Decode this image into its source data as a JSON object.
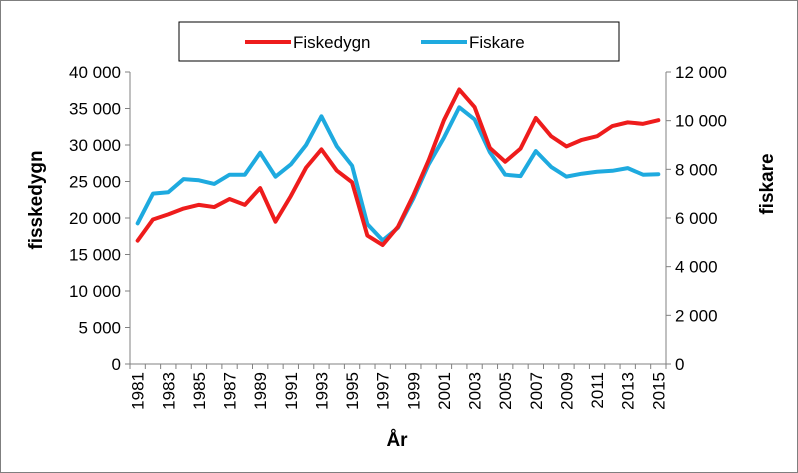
{
  "chart_data": {
    "type": "line",
    "x": [
      1981,
      1982,
      1983,
      1984,
      1985,
      1986,
      1987,
      1988,
      1989,
      1990,
      1991,
      1992,
      1993,
      1994,
      1995,
      1996,
      1997,
      1998,
      1999,
      2000,
      2001,
      2002,
      2003,
      2004,
      2005,
      2006,
      2007,
      2008,
      2009,
      2010,
      2011,
      2012,
      2013,
      2014,
      2015
    ],
    "x_tick_labels": [
      "1981",
      "1983",
      "1985",
      "1987",
      "1989",
      "1991",
      "1993",
      "1995",
      "1997",
      "1999",
      "2001",
      "2003",
      "2005",
      "2007",
      "2009",
      "2011",
      "2013",
      "2015"
    ],
    "xlabel": "År",
    "ylabel_left": "fisskedygn",
    "ylabel_right": "fiskare",
    "ylim_left": [
      0,
      40000
    ],
    "ylim_right": [
      0,
      12000
    ],
    "y_tick_labels_left": [
      "0",
      "5 000",
      "10 000",
      "15 000",
      "20 000",
      "25 000",
      "30 000",
      "35 000",
      "40 000"
    ],
    "y_tick_labels_right": [
      "0",
      "2 000",
      "4 000",
      "6 000",
      "8 000",
      "10 000",
      "12 000"
    ],
    "grid": false,
    "legend_position": "top",
    "series": [
      {
        "name": "Fiskedygn",
        "axis": "left",
        "color": "#ee1c1c",
        "values": [
          16900,
          19800,
          20500,
          21300,
          21800,
          21500,
          22600,
          21800,
          24100,
          19500,
          23000,
          26900,
          29400,
          26500,
          24900,
          17600,
          16300,
          18800,
          23100,
          27900,
          33400,
          37600,
          35200,
          29600,
          27700,
          29500,
          33700,
          31200,
          29800,
          30700,
          31200,
          32600,
          33100,
          32900,
          33400
        ]
      },
      {
        "name": "Fiskare",
        "axis": "right",
        "color": "#1eaadf",
        "values": [
          5780,
          7000,
          7060,
          7600,
          7550,
          7400,
          7780,
          7780,
          8680,
          7700,
          8200,
          9000,
          10180,
          8950,
          8150,
          5750,
          5080,
          5600,
          6800,
          8200,
          9300,
          10550,
          10050,
          8700,
          7780,
          7720,
          8750,
          8100,
          7700,
          7820,
          7900,
          7940,
          8050,
          7780,
          7800
        ]
      }
    ]
  }
}
